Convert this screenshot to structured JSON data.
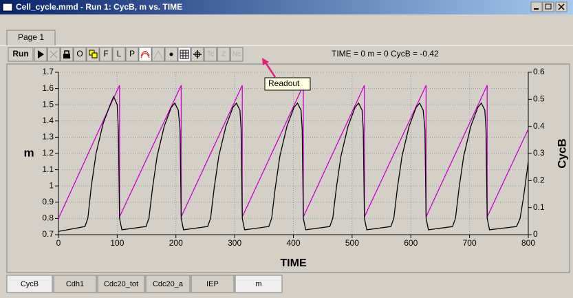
{
  "window": {
    "title": "Cell_cycle.mmd - Run 1: CycB, m vs. TIME",
    "page_tab": "Page 1",
    "toolbar": {
      "run": "Run",
      "letters": [
        "O",
        "F",
        "L",
        "P"
      ],
      "disabled": [
        "Tc",
        "Z",
        "Nc"
      ]
    },
    "readout": "TIME = 0 m = 0 CycB = -0.42",
    "tooltip": "Readout",
    "variable_tabs": [
      "CycB",
      "Cdh1",
      "Cdc20_tot",
      "Cdc20_a",
      "IEP",
      "m"
    ]
  },
  "chart_data": {
    "type": "line",
    "xlabel": "TIME",
    "xlim": [
      0,
      800
    ],
    "xticks": [
      0,
      100,
      200,
      300,
      400,
      500,
      600,
      700,
      800
    ],
    "ylim": [
      0.7,
      1.7
    ],
    "yticks": [
      0.7,
      0.8,
      0.9,
      1,
      1.1,
      1.2,
      1.3,
      1.4,
      1.5,
      1.6,
      1.7
    ],
    "y2lim": [
      0,
      0.6
    ],
    "y2ticks": [
      0,
      0.1,
      0.2,
      0.3,
      0.4,
      0.5,
      0.6
    ],
    "grid": true,
    "series": [
      {
        "name": "m",
        "color": "#cc00cc",
        "x": [
          0,
          104,
          104,
          209,
          209,
          313,
          313,
          417,
          417,
          521,
          521,
          626,
          626,
          730,
          730,
          800
        ],
        "values": [
          0.8,
          1.62,
          0.81,
          1.62,
          0.81,
          1.62,
          0.81,
          1.62,
          0.81,
          1.62,
          0.81,
          1.62,
          0.81,
          1.62,
          0.81,
          1.35
        ]
      },
      {
        "name": "CycB",
        "color": "#000000",
        "axis": "y2",
        "x": [
          0,
          45,
          50,
          56,
          64,
          76,
          88,
          94,
          100,
          102,
          104,
          108,
          149,
          154,
          160,
          168,
          180,
          192,
          198,
          204,
          207,
          209,
          213,
          254,
          259,
          265,
          273,
          285,
          297,
          303,
          309,
          311,
          313,
          317,
          358,
          363,
          369,
          377,
          389,
          401,
          407,
          413,
          415,
          417,
          421,
          462,
          467,
          473,
          481,
          493,
          505,
          511,
          517,
          519,
          521,
          525,
          566,
          571,
          577,
          585,
          597,
          609,
          615,
          621,
          624,
          626,
          630,
          671,
          676,
          682,
          690,
          702,
          714,
          720,
          726,
          728,
          730,
          734,
          780,
          786,
          792,
          800
        ],
        "values": [
          0.012,
          0.03,
          0.06,
          0.18,
          0.3,
          0.41,
          0.48,
          0.51,
          0.48,
          0.39,
          0.06,
          0.018,
          0.03,
          0.06,
          0.17,
          0.29,
          0.4,
          0.47,
          0.486,
          0.46,
          0.39,
          0.06,
          0.018,
          0.03,
          0.06,
          0.17,
          0.29,
          0.4,
          0.47,
          0.486,
          0.46,
          0.39,
          0.06,
          0.018,
          0.03,
          0.06,
          0.17,
          0.29,
          0.4,
          0.47,
          0.486,
          0.46,
          0.39,
          0.06,
          0.018,
          0.03,
          0.06,
          0.17,
          0.29,
          0.4,
          0.47,
          0.486,
          0.46,
          0.39,
          0.06,
          0.018,
          0.03,
          0.06,
          0.17,
          0.29,
          0.4,
          0.47,
          0.486,
          0.46,
          0.39,
          0.06,
          0.018,
          0.03,
          0.06,
          0.17,
          0.29,
          0.4,
          0.47,
          0.486,
          0.46,
          0.39,
          0.06,
          0.018,
          0.03,
          0.06,
          0.14,
          0.27
        ]
      }
    ]
  }
}
